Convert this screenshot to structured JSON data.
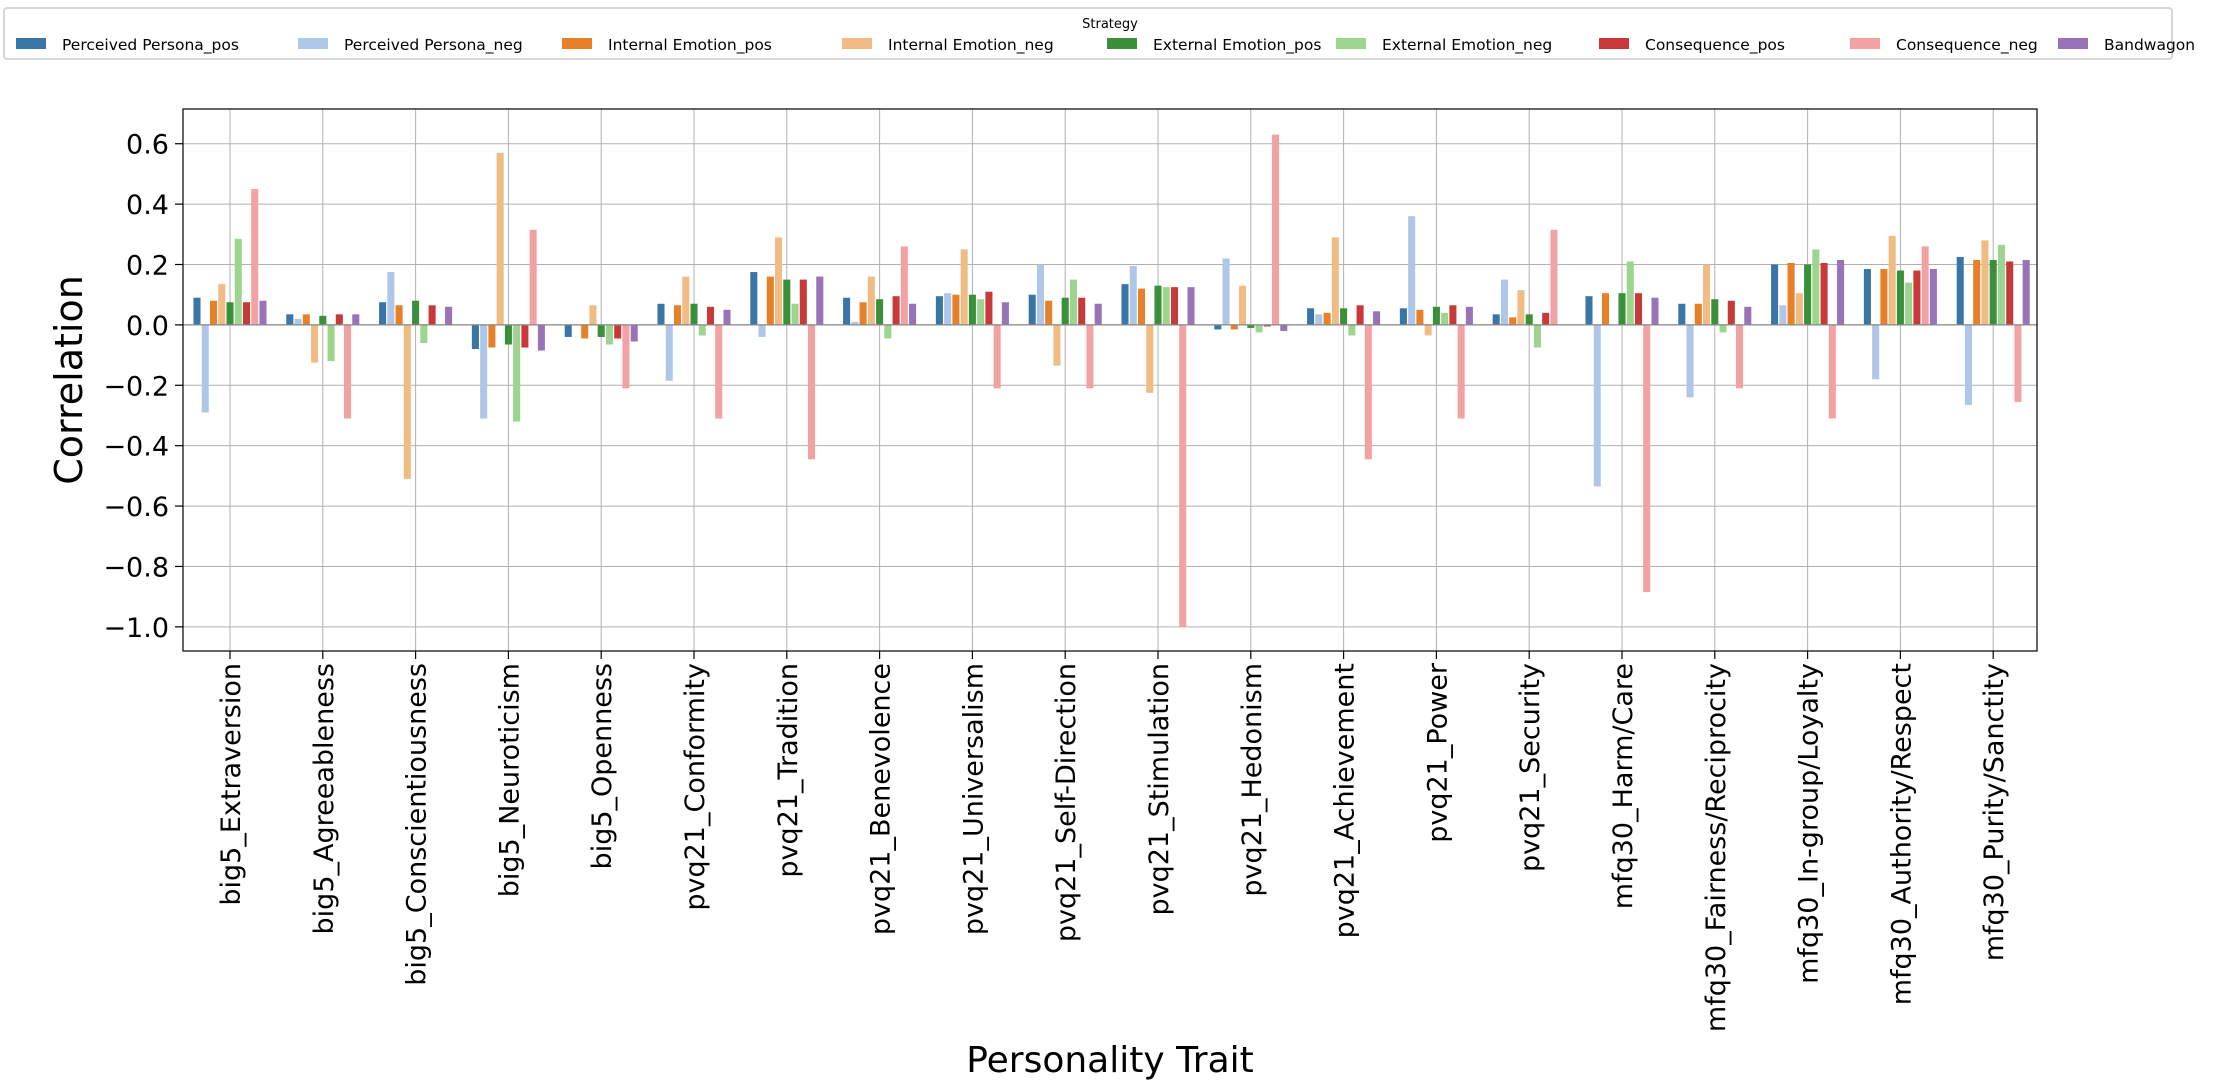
{
  "chart_data": {
    "type": "bar",
    "title": "",
    "xlabel": "Personality Trait",
    "ylabel": "Correlation",
    "ylim": [
      -1.08,
      0.715
    ],
    "yticks": [
      0.6,
      0.4,
      0.2,
      0.0,
      -0.2,
      -0.4,
      -0.6,
      -0.8,
      -1.0
    ],
    "ytick_labels": [
      "0.6",
      "0.4",
      "0.2",
      "0.0",
      "−0.2",
      "−0.4",
      "−0.6",
      "−0.8",
      "−1.0"
    ],
    "grid": true,
    "legend_title": "Strategy",
    "legend_position": "top",
    "categories": [
      "big5_Extraversion",
      "big5_Agreeableness",
      "big5_Conscientiousness",
      "big5_Neuroticism",
      "big5_Openness",
      "pvq21_Conformity",
      "pvq21_Tradition",
      "pvq21_Benevolence",
      "pvq21_Universalism",
      "pvq21_Self-Direction",
      "pvq21_Stimulation",
      "pvq21_Hedonism",
      "pvq21_Achievement",
      "pvq21_Power",
      "pvq21_Security",
      "mfq30_Harm/Care",
      "mfq30_Fairness/Reciprocity",
      "mfq30_In-group/Loyalty",
      "mfq30_Authority/Respect",
      "mfq30_Purity/Sanctity"
    ],
    "series": [
      {
        "name": "Perceived Persona_pos",
        "color": "#3a75a8",
        "values": [
          0.09,
          0.035,
          0.075,
          -0.08,
          -0.04,
          0.07,
          0.175,
          0.09,
          0.095,
          0.1,
          0.135,
          -0.015,
          0.055,
          0.055,
          0.035,
          0.095,
          0.07,
          0.2,
          0.185,
          0.225
        ]
      },
      {
        "name": "Perceived Persona_neg",
        "color": "#aec7e8",
        "values": [
          -0.29,
          0.02,
          0.175,
          -0.31,
          0.0,
          -0.185,
          -0.04,
          0.01,
          0.105,
          0.2,
          0.195,
          0.22,
          0.035,
          0.36,
          0.15,
          -0.535,
          -0.24,
          0.065,
          -0.18,
          -0.265
        ]
      },
      {
        "name": "Internal Emotion_pos",
        "color": "#e6812a",
        "values": [
          0.08,
          0.035,
          0.065,
          -0.075,
          -0.045,
          0.065,
          0.16,
          0.075,
          0.1,
          0.08,
          0.12,
          -0.015,
          0.04,
          0.05,
          0.025,
          0.105,
          0.07,
          0.205,
          0.185,
          0.215
        ]
      },
      {
        "name": "Internal Emotion_neg",
        "color": "#f0bc84",
        "values": [
          0.135,
          -0.125,
          -0.51,
          0.57,
          0.065,
          0.16,
          0.29,
          0.16,
          0.25,
          -0.135,
          -0.225,
          0.13,
          0.29,
          -0.035,
          0.115,
          0.0,
          0.2,
          0.105,
          0.295,
          0.28
        ]
      },
      {
        "name": "External Emotion_pos",
        "color": "#3a8f3a",
        "values": [
          0.075,
          0.03,
          0.08,
          -0.065,
          -0.04,
          0.07,
          0.15,
          0.085,
          0.1,
          0.09,
          0.13,
          -0.01,
          0.055,
          0.06,
          0.035,
          0.105,
          0.085,
          0.2,
          0.18,
          0.215
        ]
      },
      {
        "name": "External Emotion_neg",
        "color": "#9dd58f",
        "values": [
          0.285,
          -0.12,
          -0.06,
          -0.32,
          -0.065,
          -0.035,
          0.07,
          -0.045,
          0.085,
          0.15,
          0.125,
          -0.025,
          -0.035,
          0.04,
          -0.075,
          0.21,
          -0.025,
          0.25,
          0.14,
          0.265
        ]
      },
      {
        "name": "Consequence_pos",
        "color": "#c8393a",
        "values": [
          0.075,
          0.035,
          0.065,
          -0.075,
          -0.045,
          0.06,
          0.15,
          0.095,
          0.11,
          0.09,
          0.125,
          -0.005,
          0.065,
          0.065,
          0.04,
          0.105,
          0.08,
          0.205,
          0.18,
          0.21
        ]
      },
      {
        "name": "Consequence_neg",
        "color": "#f2a2a2",
        "values": [
          0.45,
          -0.31,
          0.0,
          0.315,
          -0.21,
          -0.31,
          -0.445,
          0.26,
          -0.21,
          -0.21,
          -1.0,
          0.63,
          -0.445,
          -0.31,
          0.315,
          -0.885,
          -0.21,
          -0.31,
          0.26,
          -0.255
        ]
      },
      {
        "name": "Bandwagon",
        "color": "#9a72b8",
        "values": [
          0.08,
          0.035,
          0.06,
          -0.085,
          -0.055,
          0.05,
          0.16,
          0.07,
          0.075,
          0.07,
          0.125,
          -0.02,
          0.045,
          0.06,
          0.0,
          0.09,
          0.06,
          0.215,
          0.185,
          0.215
        ]
      }
    ]
  }
}
